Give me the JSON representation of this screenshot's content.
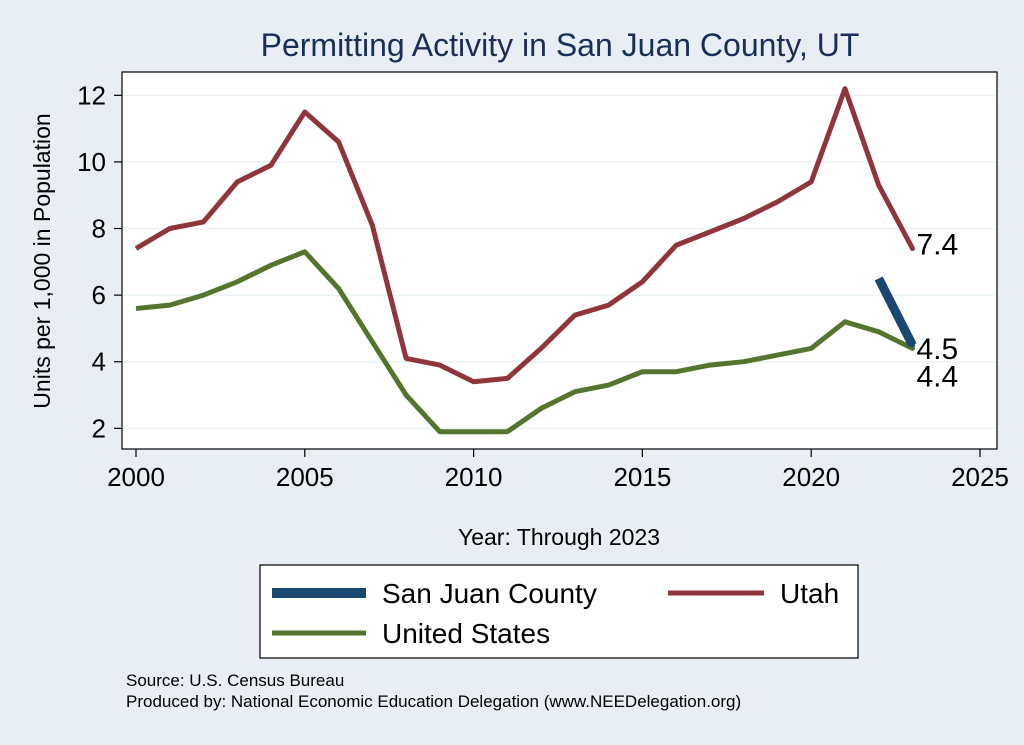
{
  "chart_data": {
    "type": "line",
    "title": "Permitting Activity in San Juan County, UT",
    "xlabel": "Year: Through 2023",
    "ylabel": "Units per 1,000 in Population",
    "xlim": [
      2000,
      2025
    ],
    "ylim": [
      1.5,
      12.7
    ],
    "xticks": [
      2000,
      2005,
      2010,
      2015,
      2020,
      2025
    ],
    "yticks": [
      2,
      4,
      6,
      8,
      10,
      12
    ],
    "grid": true,
    "legend_position": "bottom",
    "series": [
      {
        "name": "San Juan County",
        "color": "#1a476f",
        "x": [
          2022,
          2023
        ],
        "values": [
          6.5,
          4.5
        ],
        "end_label": "4.5"
      },
      {
        "name": "Utah",
        "color": "#90353b",
        "x": [
          2000,
          2001,
          2002,
          2003,
          2004,
          2005,
          2006,
          2007,
          2008,
          2009,
          2010,
          2011,
          2012,
          2013,
          2014,
          2015,
          2016,
          2017,
          2018,
          2019,
          2020,
          2021,
          2022,
          2023
        ],
        "values": [
          7.4,
          8.0,
          8.2,
          9.4,
          9.9,
          11.5,
          10.6,
          8.1,
          4.1,
          3.9,
          3.4,
          3.5,
          4.4,
          5.4,
          5.7,
          6.4,
          7.5,
          7.9,
          8.3,
          8.8,
          9.4,
          12.2,
          9.3,
          7.4
        ],
        "end_label": "7.4"
      },
      {
        "name": "United States",
        "color": "#55752f",
        "x": [
          2000,
          2001,
          2002,
          2003,
          2004,
          2005,
          2006,
          2007,
          2008,
          2009,
          2010,
          2011,
          2012,
          2013,
          2014,
          2015,
          2016,
          2017,
          2018,
          2019,
          2020,
          2021,
          2022,
          2023
        ],
        "values": [
          5.6,
          5.7,
          6.0,
          6.4,
          6.9,
          7.3,
          6.2,
          4.6,
          3.0,
          1.9,
          1.9,
          1.9,
          2.6,
          3.1,
          3.3,
          3.7,
          3.7,
          3.9,
          4.0,
          4.2,
          4.4,
          5.2,
          4.9,
          4.4
        ],
        "end_label": "4.4"
      }
    ]
  },
  "legend": {
    "items": [
      "San Juan County",
      "Utah",
      "United States"
    ]
  },
  "footer": {
    "source": "Source: U.S. Census Bureau",
    "produced_by": "Produced by: National Economic Education Delegation (www.NEEDelegation.org)"
  }
}
